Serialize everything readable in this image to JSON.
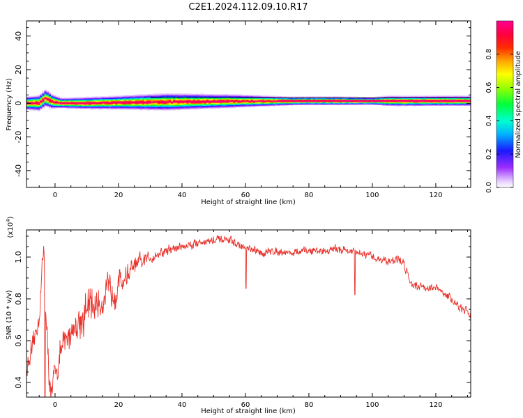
{
  "figure": {
    "title": "C2E1.2024.112.09.10.R17"
  },
  "chart_data": [
    {
      "type": "heatmap",
      "xlabel": "Height of straight line (km)",
      "ylabel": "Frequency (Hz)",
      "xlim": [
        -9,
        131
      ],
      "ylim": [
        -50,
        49
      ],
      "x_ticks": [
        0,
        20,
        40,
        60,
        80,
        100,
        120
      ],
      "y_ticks": [
        -40,
        -20,
        0,
        20,
        40
      ],
      "colorbar": {
        "label": "Normalized spectral amplitude",
        "range": [
          0,
          1
        ],
        "ticks": [
          0.0,
          0.2,
          0.4,
          0.6,
          0.8
        ],
        "tick_labels": [
          "0.0",
          "0.2",
          "0.4",
          "0.6",
          "0.8"
        ]
      },
      "ridge": [
        [
          -8,
          0
        ],
        [
          -5,
          0
        ],
        [
          -3,
          3
        ],
        [
          -1,
          1
        ],
        [
          2,
          0
        ],
        [
          10,
          0
        ],
        [
          20,
          0.3
        ],
        [
          30,
          0.6
        ],
        [
          40,
          0.8
        ],
        [
          50,
          1.0
        ],
        [
          60,
          1.2
        ],
        [
          70,
          1.2
        ],
        [
          80,
          1.3
        ],
        [
          90,
          1.3
        ],
        [
          100,
          1.2
        ],
        [
          104,
          1.3
        ],
        [
          110,
          1.2
        ],
        [
          120,
          1.3
        ],
        [
          131,
          1.3
        ]
      ],
      "band_halfwidth_hz": [
        [
          -8,
          4
        ],
        [
          -3,
          5
        ],
        [
          2,
          3
        ],
        [
          10,
          3.5
        ],
        [
          20,
          4
        ],
        [
          35,
          5
        ],
        [
          55,
          4
        ],
        [
          75,
          2.5
        ],
        [
          90,
          2.5
        ],
        [
          100,
          2.2
        ],
        [
          105,
          3
        ],
        [
          125,
          3
        ],
        [
          131,
          3
        ]
      ],
      "grid": false
    },
    {
      "type": "line",
      "xlabel": "Height of straight line (km)",
      "ylabel": "SNR (10 * v/v)",
      "y_multiplier": "(x10^4)",
      "y_multiplier_base": "x10",
      "y_multiplier_exp": "4",
      "xlim": [
        -9,
        131
      ],
      "ylim": [
        0.33,
        1.13
      ],
      "x_ticks": [
        0,
        20,
        40,
        60,
        80,
        100,
        120
      ],
      "y_ticks": [
        0.4,
        0.6,
        0.8,
        1.0
      ],
      "series": [
        {
          "color": "#e8312a",
          "envelope_x": [
            -9,
            -7,
            -5,
            -4,
            -3.5,
            -3,
            -2,
            -1,
            0,
            2,
            5,
            10,
            15,
            20,
            25,
            30,
            35,
            40,
            45,
            50,
            55,
            60,
            65,
            70,
            75,
            80,
            85,
            90,
            95,
            100,
            105,
            108,
            110,
            112,
            115,
            120,
            125,
            128,
            131
          ],
          "envelope_y": [
            0.46,
            0.56,
            0.72,
            0.95,
            1.05,
            0.78,
            0.45,
            0.33,
            0.45,
            0.55,
            0.65,
            0.74,
            0.8,
            0.87,
            0.95,
            1.0,
            1.03,
            1.05,
            1.07,
            1.08,
            1.08,
            1.04,
            1.02,
            1.03,
            1.02,
            1.03,
            1.03,
            1.04,
            1.02,
            1.0,
            0.98,
            0.99,
            0.97,
            0.88,
            0.86,
            0.85,
            0.8,
            0.75,
            0.73
          ],
          "noise_amplitude_x": [
            -9,
            0,
            10,
            20,
            30,
            40,
            60,
            90,
            110,
            131
          ],
          "noise_amplitude": [
            0.06,
            0.09,
            0.13,
            0.1,
            0.04,
            0.03,
            0.025,
            0.025,
            0.03,
            0.025
          ],
          "dips": [
            [
              60.2,
              0.85
            ],
            [
              94.5,
              0.82
            ],
            [
              -3.2,
              0.3
            ]
          ]
        }
      ],
      "grid": false
    }
  ]
}
